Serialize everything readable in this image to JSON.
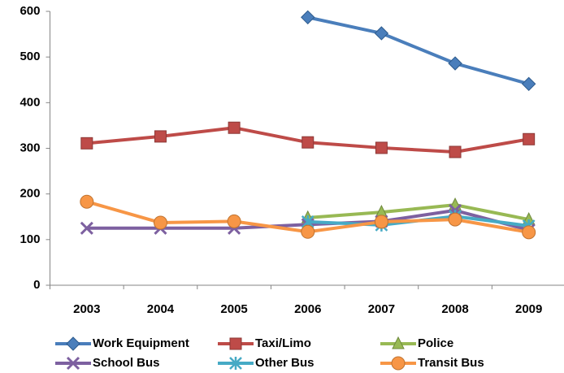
{
  "chart_data": {
    "type": "line",
    "categories": [
      "2003",
      "2004",
      "2005",
      "2006",
      "2007",
      "2008",
      "2009"
    ],
    "series": [
      {
        "name": "Work Equipment",
        "color": "#4a7ebb",
        "marker": "diamond",
        "values": [
          null,
          null,
          null,
          587,
          552,
          486,
          441
        ]
      },
      {
        "name": "Taxi/Limo",
        "color": "#be4b48",
        "marker": "square",
        "values": [
          311,
          326,
          345,
          313,
          301,
          292,
          320
        ]
      },
      {
        "name": "Police",
        "color": "#98b954",
        "marker": "triangle",
        "values": [
          null,
          null,
          null,
          148,
          160,
          176,
          144
        ]
      },
      {
        "name": "School Bus",
        "color": "#7d60a0",
        "marker": "x",
        "values": [
          125,
          125,
          125,
          133,
          140,
          164,
          121
        ]
      },
      {
        "name": "Other Bus",
        "color": "#46aac5",
        "marker": "star",
        "values": [
          null,
          null,
          null,
          139,
          132,
          151,
          130
        ]
      },
      {
        "name": "Transit Bus",
        "color": "#f79646",
        "marker": "circle",
        "values": [
          183,
          137,
          140,
          117,
          139,
          144,
          116
        ]
      }
    ],
    "ylim": [
      0,
      600
    ],
    "yticks": [
      0,
      100,
      200,
      300,
      400,
      500,
      600
    ],
    "grid": false
  }
}
